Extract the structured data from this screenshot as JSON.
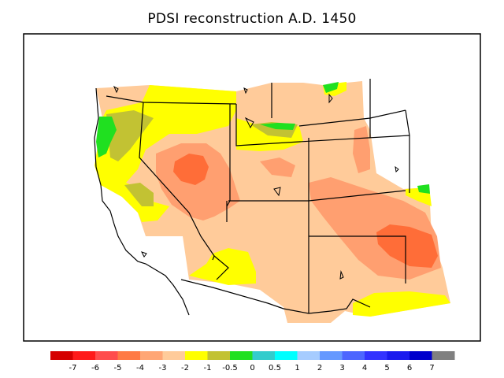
{
  "title": "PDSI reconstruction A.D. 1450",
  "legend": {
    "colors": [
      "#d50000",
      "#ff1a1a",
      "#ff4d4d",
      "#ff7a45",
      "#ffa675",
      "#ffcb9a",
      "#ffff00",
      "#c2c233",
      "#20e020",
      "#33cccc",
      "#00ffff",
      "#a6ccff",
      "#6699ff",
      "#4d66ff",
      "#3333ff",
      "#1a1aee",
      "#0000cc",
      "#808080"
    ],
    "ticks": [
      "-7",
      "-6",
      "-5",
      "-4",
      "-3",
      "-2",
      "-1",
      "-0.5",
      "0",
      "0.5",
      "1",
      "2",
      "3",
      "4",
      "5",
      "6",
      "7"
    ]
  },
  "map": {
    "background_color": "#ffcb9a",
    "region_colors": {
      "dry_moderate": "#ff9f70",
      "dry_strong": "#ff6d38",
      "near_normal": "#ffff00",
      "slightly_dry": "#c2c233",
      "normal": "#20e020"
    }
  }
}
